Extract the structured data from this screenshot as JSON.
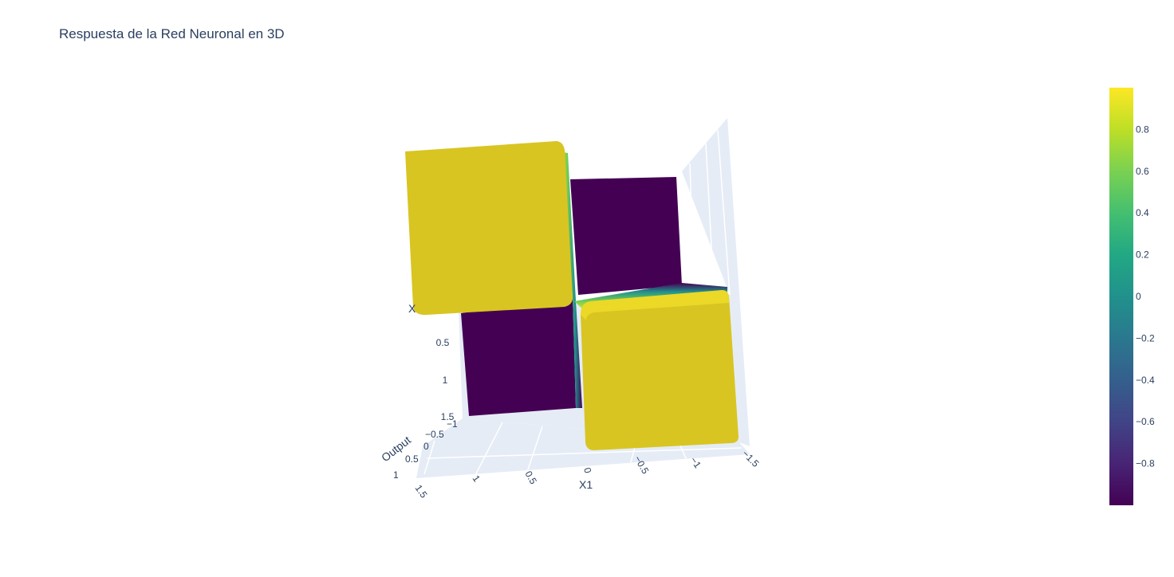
{
  "chart_data": {
    "type": "surface",
    "title": "Respuesta de la Red Neuronal en 3D",
    "x_axis": {
      "label": "X1",
      "range": [
        -1.5,
        1.5
      ],
      "ticks": [
        "1.5",
        "1",
        "0.5",
        "0",
        "−0.5",
        "−1",
        "−1.5"
      ]
    },
    "y_axis": {
      "label": "X2",
      "shown_label": "X",
      "ticks": [
        "0.5",
        "1",
        "1.5"
      ]
    },
    "z_axis": {
      "label": "Output",
      "ticks": [
        "−1",
        "−0.5",
        "0",
        "0.5",
        "1"
      ]
    },
    "colorscale": "Viridis",
    "colorbar": {
      "range": [
        -1,
        1
      ],
      "ticks": [
        "0.8",
        "0.6",
        "0.4",
        "0.2",
        "0",
        "−0.2",
        "−0.4",
        "−0.6",
        "−0.8"
      ]
    },
    "surface_description": "XOR-like response",
    "regions": [
      {
        "quadrant": "x1>0, x2<0",
        "output": 1
      },
      {
        "quadrant": "x1<0, x2<0",
        "output": -1
      },
      {
        "quadrant": "x1>0, x2>0",
        "output": -1
      },
      {
        "quadrant": "x1<0, x2>0",
        "output": 1
      }
    ],
    "colors": {
      "high": "#d8c522",
      "low": "#440154",
      "mid": "#21918c"
    }
  }
}
